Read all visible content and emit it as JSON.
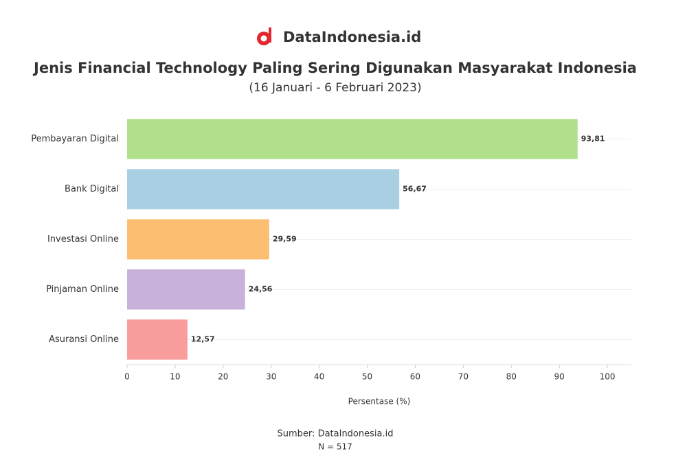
{
  "brand": "DataIndonesia.id",
  "chart_data": {
    "type": "barh",
    "title": "Jenis Financial Technology Paling Sering Digunakan Masyarakat Indonesia",
    "subtitle": "(16 Januari - 6 Februari 2023)",
    "categories": [
      "Pembayaran Digital",
      "Bank Digital",
      "Investasi Online",
      "Pinjaman Online",
      "Asuransi Online"
    ],
    "values": [
      93.81,
      56.67,
      29.59,
      24.56,
      12.57
    ],
    "value_labels": [
      "93,81",
      "56,67",
      "29,59",
      "24,56",
      "12,57"
    ],
    "colors": [
      "#b1e08b",
      "#a9cfe3",
      "#fcbf72",
      "#c9b2d9",
      "#f99c9c"
    ],
    "xlabel": "Persentase (%)",
    "xlim": [
      0,
      105
    ],
    "xticks": [
      0,
      10,
      20,
      30,
      40,
      50,
      60,
      70,
      80,
      90,
      100
    ],
    "source": "Sumber: DataIndonesia.id",
    "note": "N = 517"
  }
}
